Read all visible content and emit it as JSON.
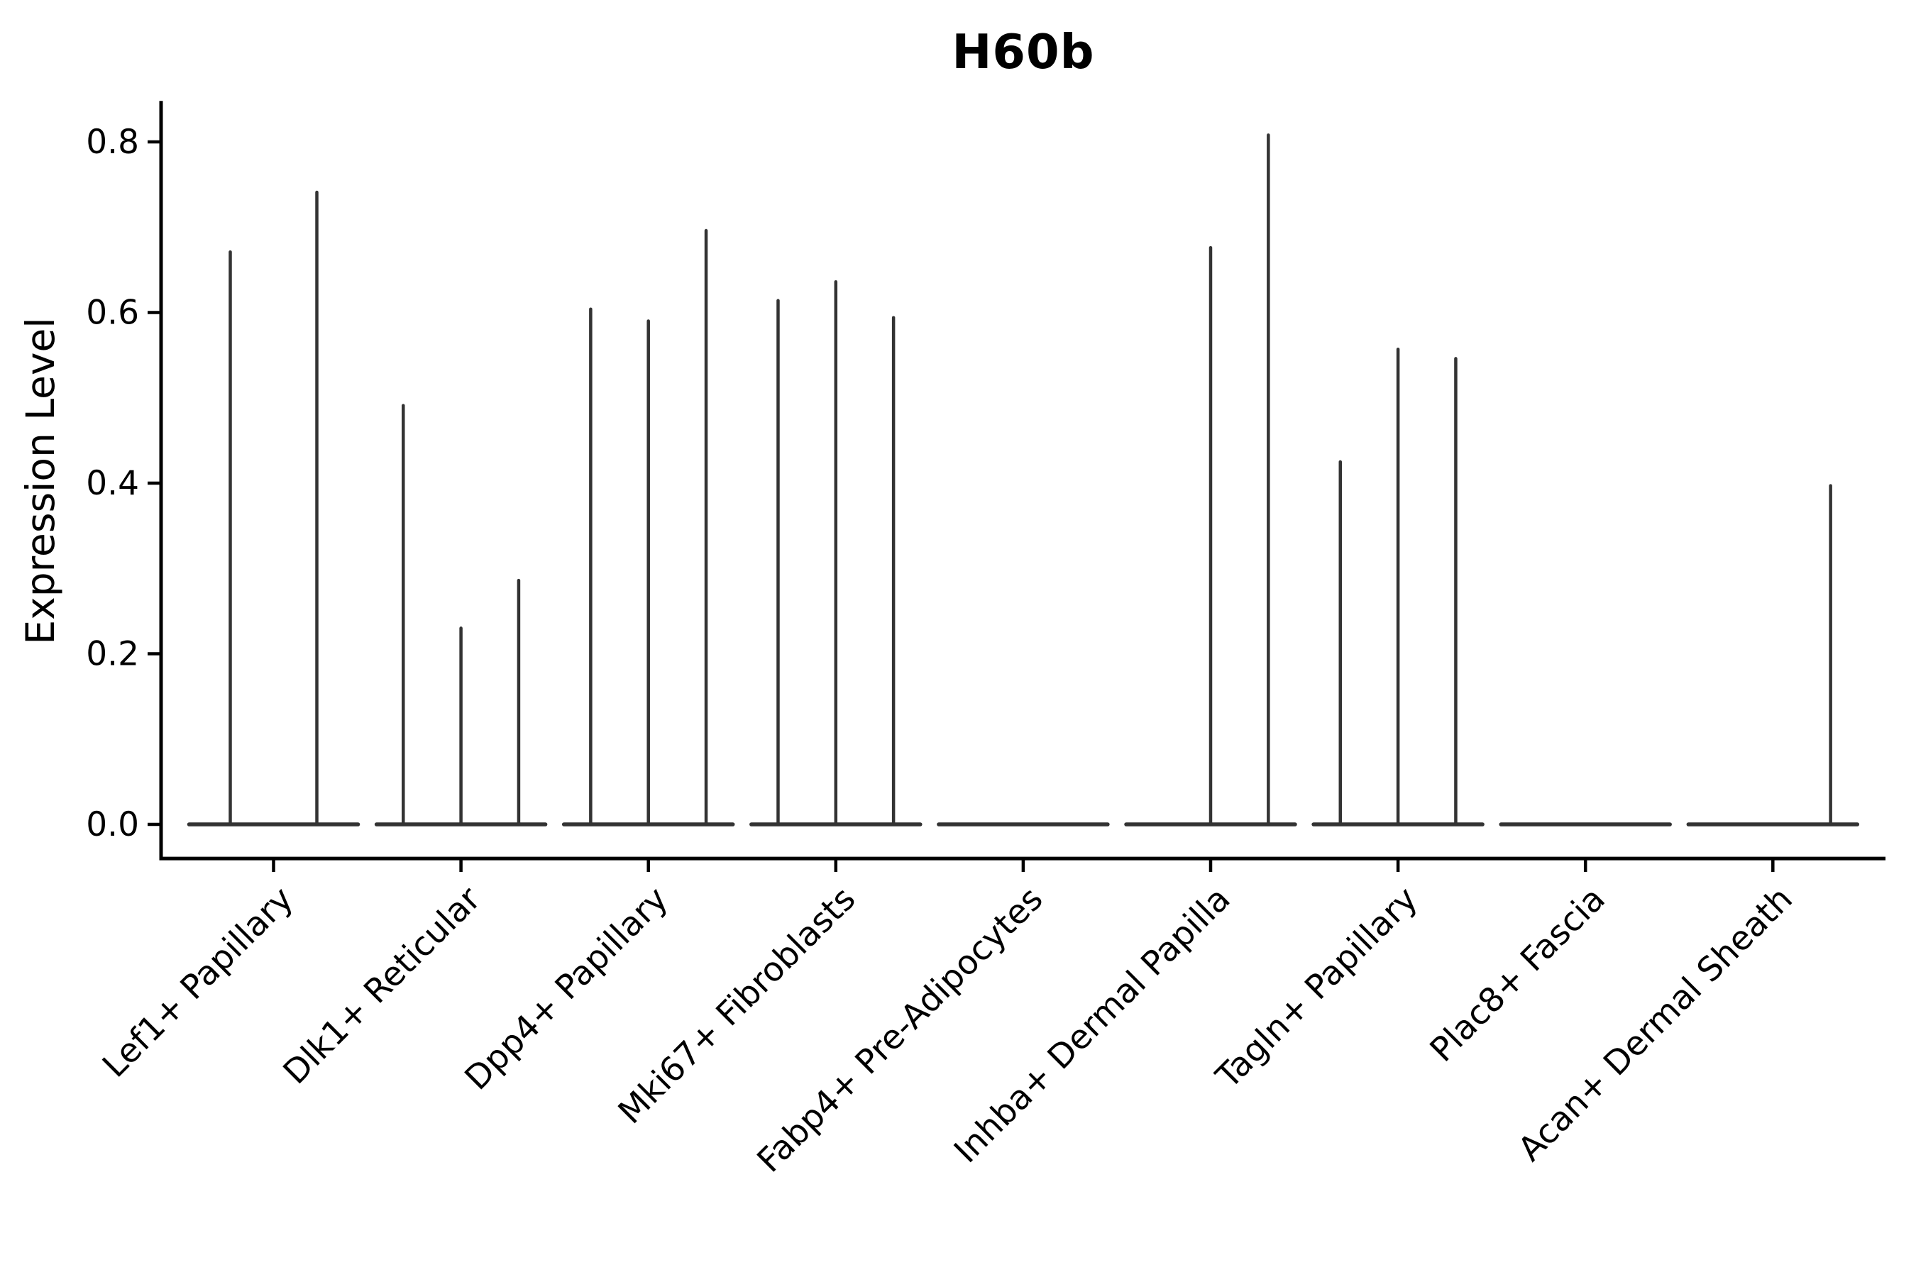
{
  "chart_data": {
    "type": "violin",
    "title": "H60b",
    "xlabel": "",
    "ylabel": "Expression Level",
    "ylim": [
      -0.04,
      0.848
    ],
    "yticks": [
      0.0,
      0.2,
      0.4,
      0.6,
      0.8
    ],
    "grid": false,
    "legend": null,
    "x_tick_rotation": 45,
    "categories": [
      "Lef1+ Papillary",
      "Dlk1+ Reticular",
      "Dpp4+ Papillary",
      "Mki67+ Fibroblasts",
      "Fabp4+ Pre-Adipocytes",
      "Inhba+ Dermal Papilla",
      "Tagln+ Papillary",
      "Plac8+ Fascia",
      "Acan+ Dermal Sheath"
    ],
    "groups": [
      {
        "category": "Lef1+ Papillary",
        "violin_maxima": [
          0.671,
          0.741
        ]
      },
      {
        "category": "Dlk1+ Reticular",
        "violin_maxima": [
          0.491,
          0.23,
          0.286
        ]
      },
      {
        "category": "Dpp4+ Papillary",
        "violin_maxima": [
          0.604,
          0.59,
          0.696
        ]
      },
      {
        "category": "Mki67+ Fibroblasts",
        "violin_maxima": [
          0.614,
          0.636,
          0.594
        ]
      },
      {
        "category": "Fabp4+ Pre-Adipocytes",
        "violin_maxima": [
          0,
          0,
          0
        ]
      },
      {
        "category": "Inhba+ Dermal Papilla",
        "violin_maxima": [
          0,
          0.676,
          0.808
        ]
      },
      {
        "category": "Tagln+ Papillary",
        "violin_maxima": [
          0.425,
          0.557,
          0.546
        ]
      },
      {
        "category": "Plac8+ Fascia",
        "violin_maxima": [
          0,
          0,
          0
        ]
      },
      {
        "category": "Acan+ Dermal Sheath",
        "violin_maxima": [
          0,
          0,
          0.397
        ]
      }
    ],
    "colors": {
      "violin_line": "#333333",
      "axis": "#000000",
      "text": "#000000",
      "background": "#ffffff"
    }
  }
}
